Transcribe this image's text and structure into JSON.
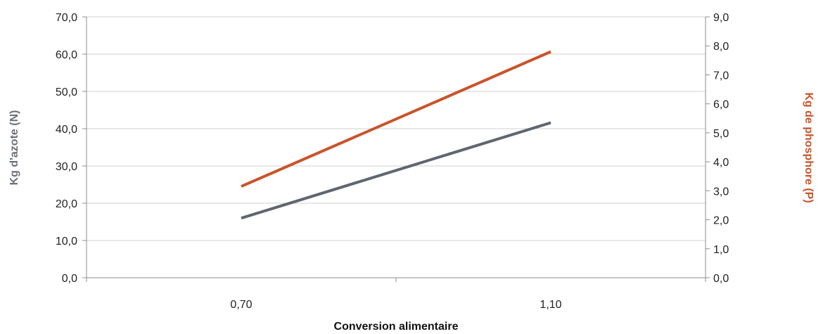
{
  "chart_data": {
    "type": "line",
    "title": "",
    "xlabel": "Conversion alimentaire",
    "ylabel_left": "Kg d'azote (N)",
    "ylabel_right": "Kg de phosphore (P)",
    "x_tick_labels": [
      "0,70",
      "1,10"
    ],
    "y_left_ticks": [
      "0,0",
      "10,0",
      "20,0",
      "30,0",
      "40,0",
      "50,0",
      "60,0",
      "70,0"
    ],
    "y_right_ticks": [
      "0,0",
      "1,0",
      "2,0",
      "3,0",
      "4,0",
      "5,0",
      "6,0",
      "7,0",
      "8,0",
      "9,0"
    ],
    "y_left_range": [
      0,
      70
    ],
    "y_right_range": [
      0,
      9
    ],
    "grid": true,
    "series": [
      {
        "axis": "left",
        "color": "#5f6670",
        "x": [
          0.7,
          1.1
        ],
        "values": [
          16.0,
          41.6
        ]
      },
      {
        "axis": "right",
        "color": "#c9542b",
        "x": [
          0.7,
          1.1
        ],
        "values": [
          3.15,
          7.8
        ]
      }
    ],
    "colors": {
      "left_axis_title": "#6b7079",
      "right_axis_title": "#c9542b",
      "grid": "#d0d0d0",
      "axis": "#8c8c8c"
    }
  }
}
